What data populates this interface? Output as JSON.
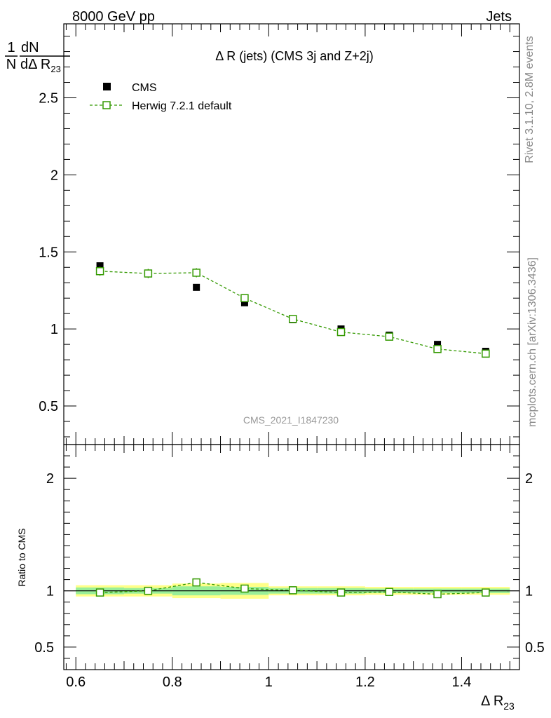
{
  "header": {
    "left": "8000 GeV pp",
    "right": "Jets"
  },
  "side_labels": {
    "rivet": "Rivet 3.1.10,  2.8M events",
    "mcplots": "mcplots.cern.ch [arXiv:1306.3436]"
  },
  "watermark": "CMS_2021_I1847230",
  "colors": {
    "data": "#000000",
    "mc": "#339900",
    "band_inner": "#99ee99",
    "band_outer": "#ffff88"
  },
  "chart_data": [
    {
      "type": "scatter",
      "title": "Δ R (jets) (CMS 3j and Z+2j)",
      "ylabel_top": "dN",
      "ylabel_frac_left": "1",
      "ylabel_frac_leftbottom": "N",
      "ylabel_bottom": "dΔ R",
      "ylabel_sub": "23",
      "xlim": [
        0.575,
        1.52
      ],
      "ylim": [
        0.25,
        2.98
      ],
      "yticks": [
        0.5,
        1,
        1.5,
        2,
        2.5
      ],
      "ytick_labels": [
        "0.5",
        "1",
        "1.5",
        "2",
        "2.5"
      ],
      "legend": {
        "placement": "top-left"
      },
      "series": [
        {
          "name": "CMS",
          "marker": "filled-square",
          "x": [
            0.65,
            0.75,
            0.85,
            0.95,
            1.05,
            1.15,
            1.25,
            1.35,
            1.45
          ],
          "y": [
            1.41,
            1.36,
            1.27,
            1.17,
            1.06,
            1.0,
            0.96,
            0.9,
            0.855
          ],
          "err": [
            0.015,
            0.015,
            0.012,
            0.012,
            0.01,
            0.01,
            0.01,
            0.01,
            0.01
          ]
        },
        {
          "name": "Herwig 7.2.1 default",
          "marker": "open-square",
          "x": [
            0.65,
            0.75,
            0.85,
            0.95,
            1.05,
            1.15,
            1.25,
            1.35,
            1.45
          ],
          "y": [
            1.375,
            1.36,
            1.365,
            1.2,
            1.065,
            0.98,
            0.95,
            0.87,
            0.84
          ],
          "err": [
            0.03,
            0.03,
            0.03,
            0.025,
            0.02,
            0.02,
            0.02,
            0.02,
            0.02
          ]
        }
      ]
    },
    {
      "type": "scatter",
      "ylabel": "Ratio to CMS",
      "xlabel": "Δ R",
      "xlabel_sub": "23",
      "xlim": [
        0.575,
        1.52
      ],
      "ylim": [
        0.3,
        2.3
      ],
      "xticks": [
        0.6,
        0.8,
        1.0,
        1.2,
        1.4
      ],
      "xtick_labels": [
        "0.6",
        "0.8",
        "1",
        "1.2",
        "1.4"
      ],
      "yticks": [
        0.5,
        1,
        2
      ],
      "ytick_labels": [
        "0.5",
        "1",
        "2"
      ],
      "bins": [
        [
          0.6,
          0.7
        ],
        [
          0.7,
          0.8
        ],
        [
          0.8,
          0.9
        ],
        [
          0.9,
          1.0
        ],
        [
          1.0,
          1.1
        ],
        [
          1.1,
          1.2
        ],
        [
          1.2,
          1.3
        ],
        [
          1.3,
          1.4
        ],
        [
          1.4,
          1.5
        ]
      ],
      "band_inner": [
        0.03,
        0.025,
        0.04,
        0.035,
        0.025,
        0.025,
        0.02,
        0.02,
        0.02
      ],
      "band_outer": [
        0.05,
        0.05,
        0.065,
        0.07,
        0.04,
        0.04,
        0.035,
        0.035,
        0.035
      ],
      "ratio": {
        "name": "Herwig 7.2.1 default",
        "x": [
          0.65,
          0.75,
          0.85,
          0.95,
          1.05,
          1.15,
          1.25,
          1.35,
          1.45
        ],
        "y": [
          0.985,
          1.0,
          1.075,
          1.02,
          1.005,
          0.985,
          0.99,
          0.97,
          0.985
        ]
      }
    }
  ]
}
